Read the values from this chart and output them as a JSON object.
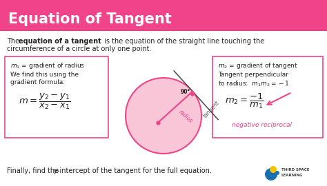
{
  "title": "Equation of Tangent",
  "title_bg": "#f0438a",
  "title_color": "#ffffff",
  "bg_color": "#ffffff",
  "pink_light": "#f9c6d8",
  "pink_dark": "#f0438a",
  "box_border": "#f0438a",
  "text_color": "#222222",
  "pink_text": "#f0438a",
  "right_caption": "negative reciprocal",
  "angle_label": "90°",
  "tangent_label": "tangent",
  "radius_label": "radius"
}
